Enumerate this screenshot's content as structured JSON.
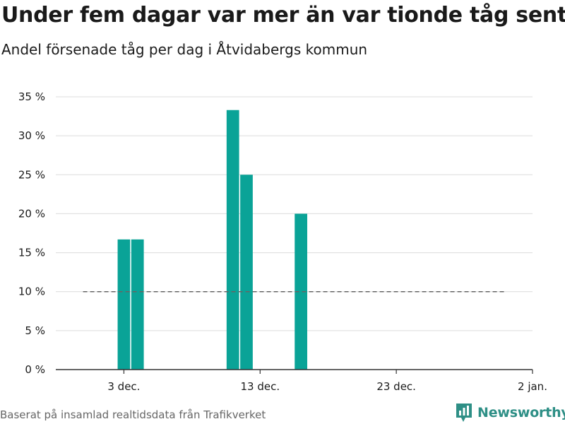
{
  "title": "Under fem dagar var mer än var tionde tåg sent",
  "subtitle": "Andel försenade tåg per dag i Åtvidabergs kommun",
  "source": "Baserat på insamlad realtidsdata från Trafikverket",
  "brand": "Newsworthy",
  "colors": {
    "bar": "#0aa397",
    "brand": "#2e8f86",
    "reference_line": "#666666"
  },
  "chart_data": {
    "type": "bar",
    "title": "Under fem dagar var mer än var tionde tåg sent",
    "subtitle": "Andel försenade tåg per dag i Åtvidabergs kommun",
    "xlabel": "",
    "ylabel": "",
    "x_range": [
      "2023-11-28",
      "2024-01-02"
    ],
    "ylim": [
      0,
      35
    ],
    "y_ticks": [
      0,
      5,
      10,
      15,
      20,
      25,
      30,
      35
    ],
    "y_tick_labels": [
      "0 %",
      "5 %",
      "10 %",
      "15 %",
      "20 %",
      "25 %",
      "30 %",
      "35 %"
    ],
    "x_ticks": [
      "2023-12-03",
      "2023-12-13",
      "2023-12-23",
      "2024-01-02"
    ],
    "x_tick_labels": [
      "3 dec.",
      "13 dec.",
      "23 dec.",
      "2 jan."
    ],
    "grid": true,
    "series": [
      {
        "x": [
          "2023-12-03",
          "2023-12-04",
          "2023-12-11",
          "2023-12-12",
          "2023-12-16"
        ],
        "values": [
          16.7,
          16.7,
          33.3,
          25.0,
          20.0
        ]
      }
    ],
    "reference_line": {
      "value": 10,
      "style": "dashed",
      "x_range": [
        "2023-11-30",
        "2023-12-31"
      ]
    }
  }
}
